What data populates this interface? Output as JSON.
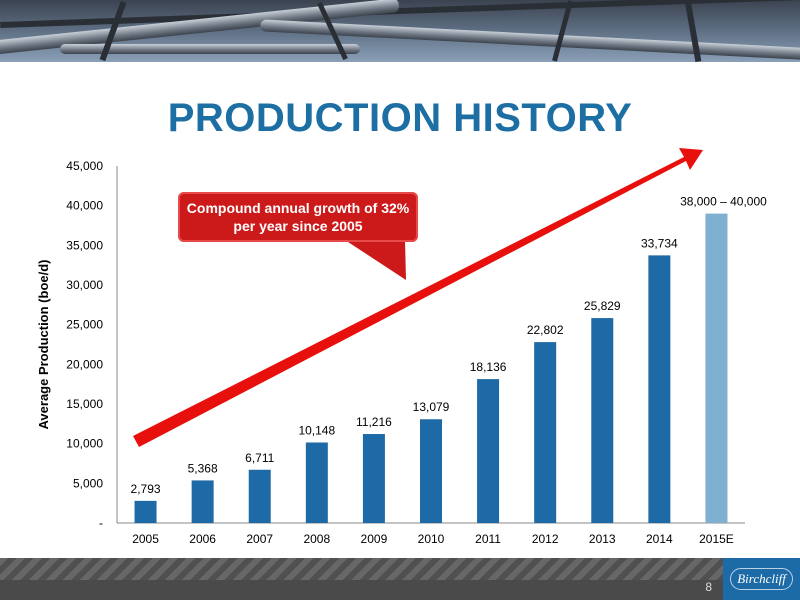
{
  "slide": {
    "title": "PRODUCTION HISTORY",
    "page_number": "8",
    "logo_text": "Birchcliff"
  },
  "callout": {
    "text": "Compound annual growth of 32% per year since 2005"
  },
  "colors": {
    "title": "#1d6fa3",
    "bar_actual": "#1e6aa6",
    "bar_estimate": "#7fb0d0",
    "arrow": "#e8100c",
    "callout_bg": "#cc1a1a"
  },
  "chart_data": {
    "type": "bar",
    "title": "",
    "xlabel": "",
    "ylabel": "Average Production (boe/d)",
    "ylim": [
      0,
      45000
    ],
    "yticks": [
      0,
      5000,
      10000,
      15000,
      20000,
      25000,
      30000,
      35000,
      40000,
      45000
    ],
    "ytick_labels": [
      "-",
      "5,000",
      "10,000",
      "15,000",
      "20,000",
      "25,000",
      "30,000",
      "35,000",
      "40,000",
      "45,000"
    ],
    "categories": [
      "2005",
      "2006",
      "2007",
      "2008",
      "2009",
      "2010",
      "2011",
      "2012",
      "2013",
      "2014",
      "2015E"
    ],
    "values": [
      2793,
      5368,
      6711,
      10148,
      11216,
      13079,
      18136,
      22802,
      25829,
      33734,
      39000
    ],
    "value_labels": [
      "2,793",
      "5,368",
      "6,711",
      "10,148",
      "11,216",
      "13,079",
      "18,136",
      "22,802",
      "25,829",
      "33,734",
      "38,000 – 40,000"
    ],
    "estimate_index": 10,
    "grid": false
  }
}
